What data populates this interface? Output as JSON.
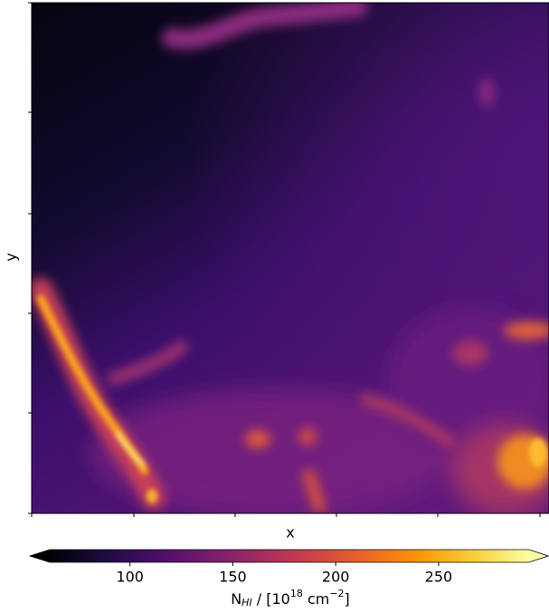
{
  "chart_data": {
    "type": "heatmap",
    "colormap": "inferno",
    "xlabel": "x",
    "ylabel": "y",
    "colorbar": {
      "label_parts": [
        "N",
        "HI",
        " / [10",
        "18",
        " cm",
        "−2",
        "]"
      ],
      "clim": [
        61,
        294
      ],
      "ticks": [
        100,
        150,
        200,
        250
      ],
      "extend": "both"
    }
  }
}
